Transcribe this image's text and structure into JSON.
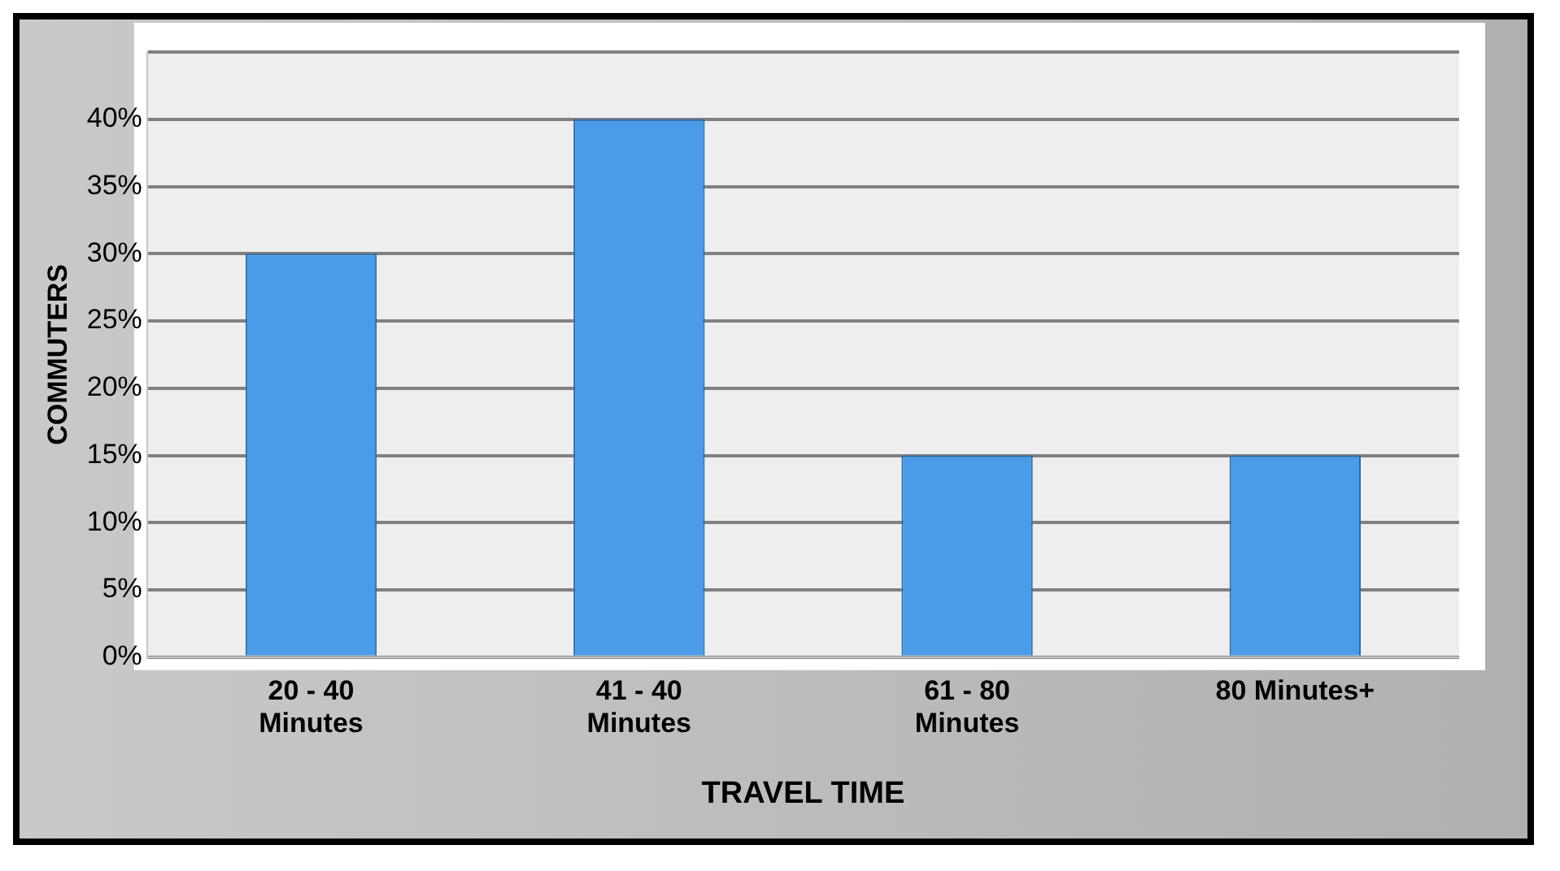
{
  "chart_data": {
    "type": "bar",
    "xlabel": "TRAVEL TIME",
    "ylabel": "COMMUTERS",
    "categories": [
      "20 - 40 Minutes",
      "41 - 40 Minutes",
      "61 - 80 Minutes",
      "80 Minutes+"
    ],
    "values": [
      30,
      40,
      15,
      15
    ],
    "color": "#4a9be8",
    "ylim": [
      0,
      45
    ],
    "yticks": [
      {
        "value": 0,
        "label": "0%"
      },
      {
        "value": 5,
        "label": "5%"
      },
      {
        "value": 10,
        "label": "10%"
      },
      {
        "value": 15,
        "label": "15%"
      },
      {
        "value": 20,
        "label": "20%"
      },
      {
        "value": 25,
        "label": "25%"
      },
      {
        "value": 30,
        "label": "30%"
      },
      {
        "value": 35,
        "label": "35%"
      },
      {
        "value": 40,
        "label": "40%"
      },
      {
        "value": 45,
        "label": null
      }
    ],
    "grid": "y"
  }
}
